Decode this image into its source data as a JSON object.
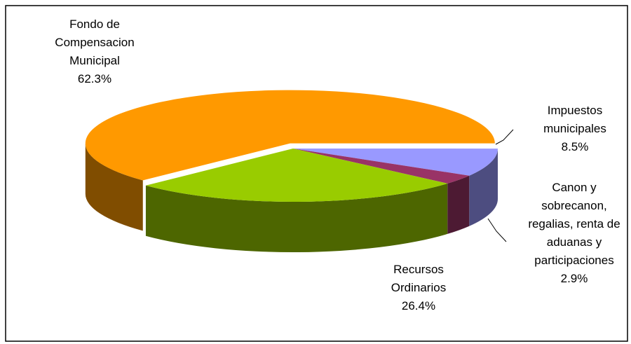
{
  "chart_data": {
    "type": "pie3d",
    "categories": [
      "Fondo de Compensacion Municipal",
      "Impuestos municipales",
      "Canon y sobrecanon, regalias, renta de aduanas y participaciones",
      "Recursos Ordinarios"
    ],
    "values": [
      62.3,
      8.5,
      2.9,
      26.4
    ],
    "value_labels": [
      "62.3%",
      "8.5%",
      "2.9%",
      "26.4%"
    ],
    "colors": [
      "#ff9900",
      "#9999ff",
      "#993366",
      "#99cc00"
    ]
  }
}
